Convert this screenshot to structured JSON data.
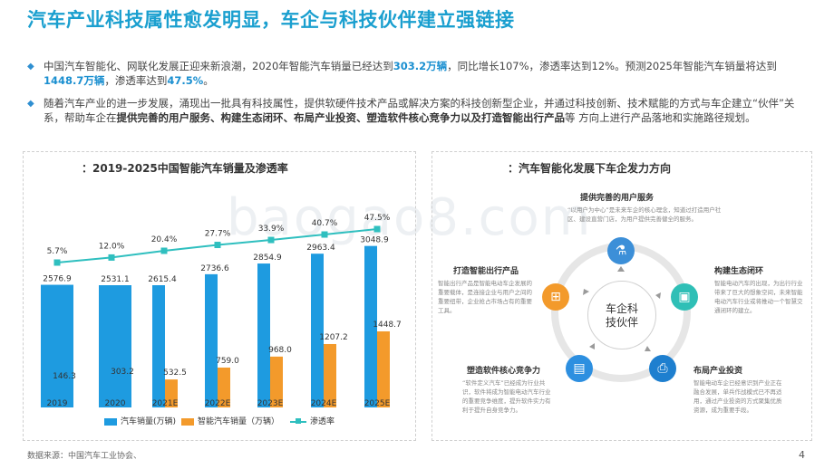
{
  "title": "汽车产业科技属性愈发明显，车企与科技伙伴建立强链接",
  "bullets": [
    {
      "pre": "中国汽车智能化、网联化发展正迎来新浪潮，2020年智能汽车销量已经达到",
      "hl1": "303.2万辆",
      "mid": "，同比增长107%，渗透率达到12%。预测2025年智能汽车销量将达到",
      "hl2": "1448.7万辆",
      "mid2": "，渗透率达到",
      "hl3": "47.5%",
      "post": "。"
    },
    {
      "pre": "随着汽车产业的进一步发展，涌现出一批具有科技属性，提供软硬件技术产品或解决方案的科技创新型企业，并通过科技创新、技术赋能的方式与车企建立“伙伴”关系，帮助车企在",
      "bold": "提供完善的用户服务、构建生态闭环、布局产业投资、塑造软件核心竞争力以及打造智能出行产品",
      "post": "等 方向上进行产品落地和实施路径规划。"
    }
  ],
  "left_panel_title": "：2019-2025中国智能汽车销量及渗透率",
  "right_panel_title": "：汽车智能化发展下车企发力方向",
  "chart_data": {
    "type": "bar",
    "title": "2019-2025中国智能汽车销量及渗透率",
    "categories": [
      "2019",
      "2020",
      "2021E",
      "2022E",
      "2023E",
      "2024E",
      "2025E"
    ],
    "series": [
      {
        "name": "汽车销量(万辆)",
        "values": [
          2576.9,
          2531.1,
          2615.4,
          2736.6,
          2854.9,
          2963.4,
          3048.9
        ],
        "labels": [
          "2576.9",
          "2531.1",
          "2615.4",
          "2736.6",
          "2854.9",
          "2963.4",
          "3048.9"
        ],
        "color": "#1e9be0"
      },
      {
        "name": "智能汽车销量（万辆）",
        "values": [
          146.3,
          303.2,
          532.5,
          759.0,
          968.0,
          1207.2,
          1448.7
        ],
        "labels": [
          "146.3",
          "303.2",
          "532.5",
          "759.0",
          "968.0",
          "1207.2",
          "1448.7"
        ],
        "color": "#f39a2b"
      },
      {
        "name": "渗透率",
        "type": "line",
        "values": [
          5.7,
          12.0,
          20.4,
          27.7,
          33.9,
          40.7,
          47.5
        ],
        "labels": [
          "5.7%",
          "12.0%",
          "20.4%",
          "27.7%",
          "33.9%",
          "40.7%",
          "47.5%"
        ],
        "color": "#2fbfbf"
      }
    ]
  },
  "hub": {
    "center": "车企科技伙伴",
    "center_line1": "车企科",
    "center_line2": "技伙伴",
    "blocks": [
      {
        "title": "提供完善的用户服务",
        "desc": "“以用户为中心”是未来车企的核心理念，知道过打造用户社区、建设直营门店，为用户提供完善健全的服务。",
        "icon": "flask-icon",
        "color": "#3c8fd8",
        "glyph": "⚗"
      },
      {
        "title": "构建生态闭环",
        "desc": "智能电动汽车的出现，为出行行业带来了巨大的想象空间，未来智能电动汽车行业或将推动一个智慧交通闭环的建立。",
        "icon": "image-icon",
        "color": "#2fbfb6",
        "glyph": "▣"
      },
      {
        "title": "布局产业投资",
        "desc": "智能电动车企已经意识到产业正在融合发展，单兵作战模式已不再适用，通过产业投资的方式聚集优质资源，成为重要手段。",
        "icon": "printer-icon",
        "color": "#1e7fcf",
        "glyph": "⎙"
      },
      {
        "title": "塑造软件核心竞争力",
        "desc": "“软件定义汽车”已经成为行业共识，软件将成为智能电动汽车行业的重要竞争维度，提升软件实力有利于提升自身竞争力。",
        "icon": "document-icon",
        "color": "#2d8fe0",
        "glyph": "▤"
      },
      {
        "title": "打造智能出行产品",
        "desc": "智能出行产品是智能电动车企发展的重要载体，是连接企业与用户之间的重要纽带，企业抢占市场占有的重要工具。",
        "icon": "network-icon",
        "color": "#f39a2b",
        "glyph": "⊞"
      }
    ]
  },
  "source": "数据来源：中国汽车工业协会、",
  "page_number": "4",
  "watermark": "baogao8.com"
}
